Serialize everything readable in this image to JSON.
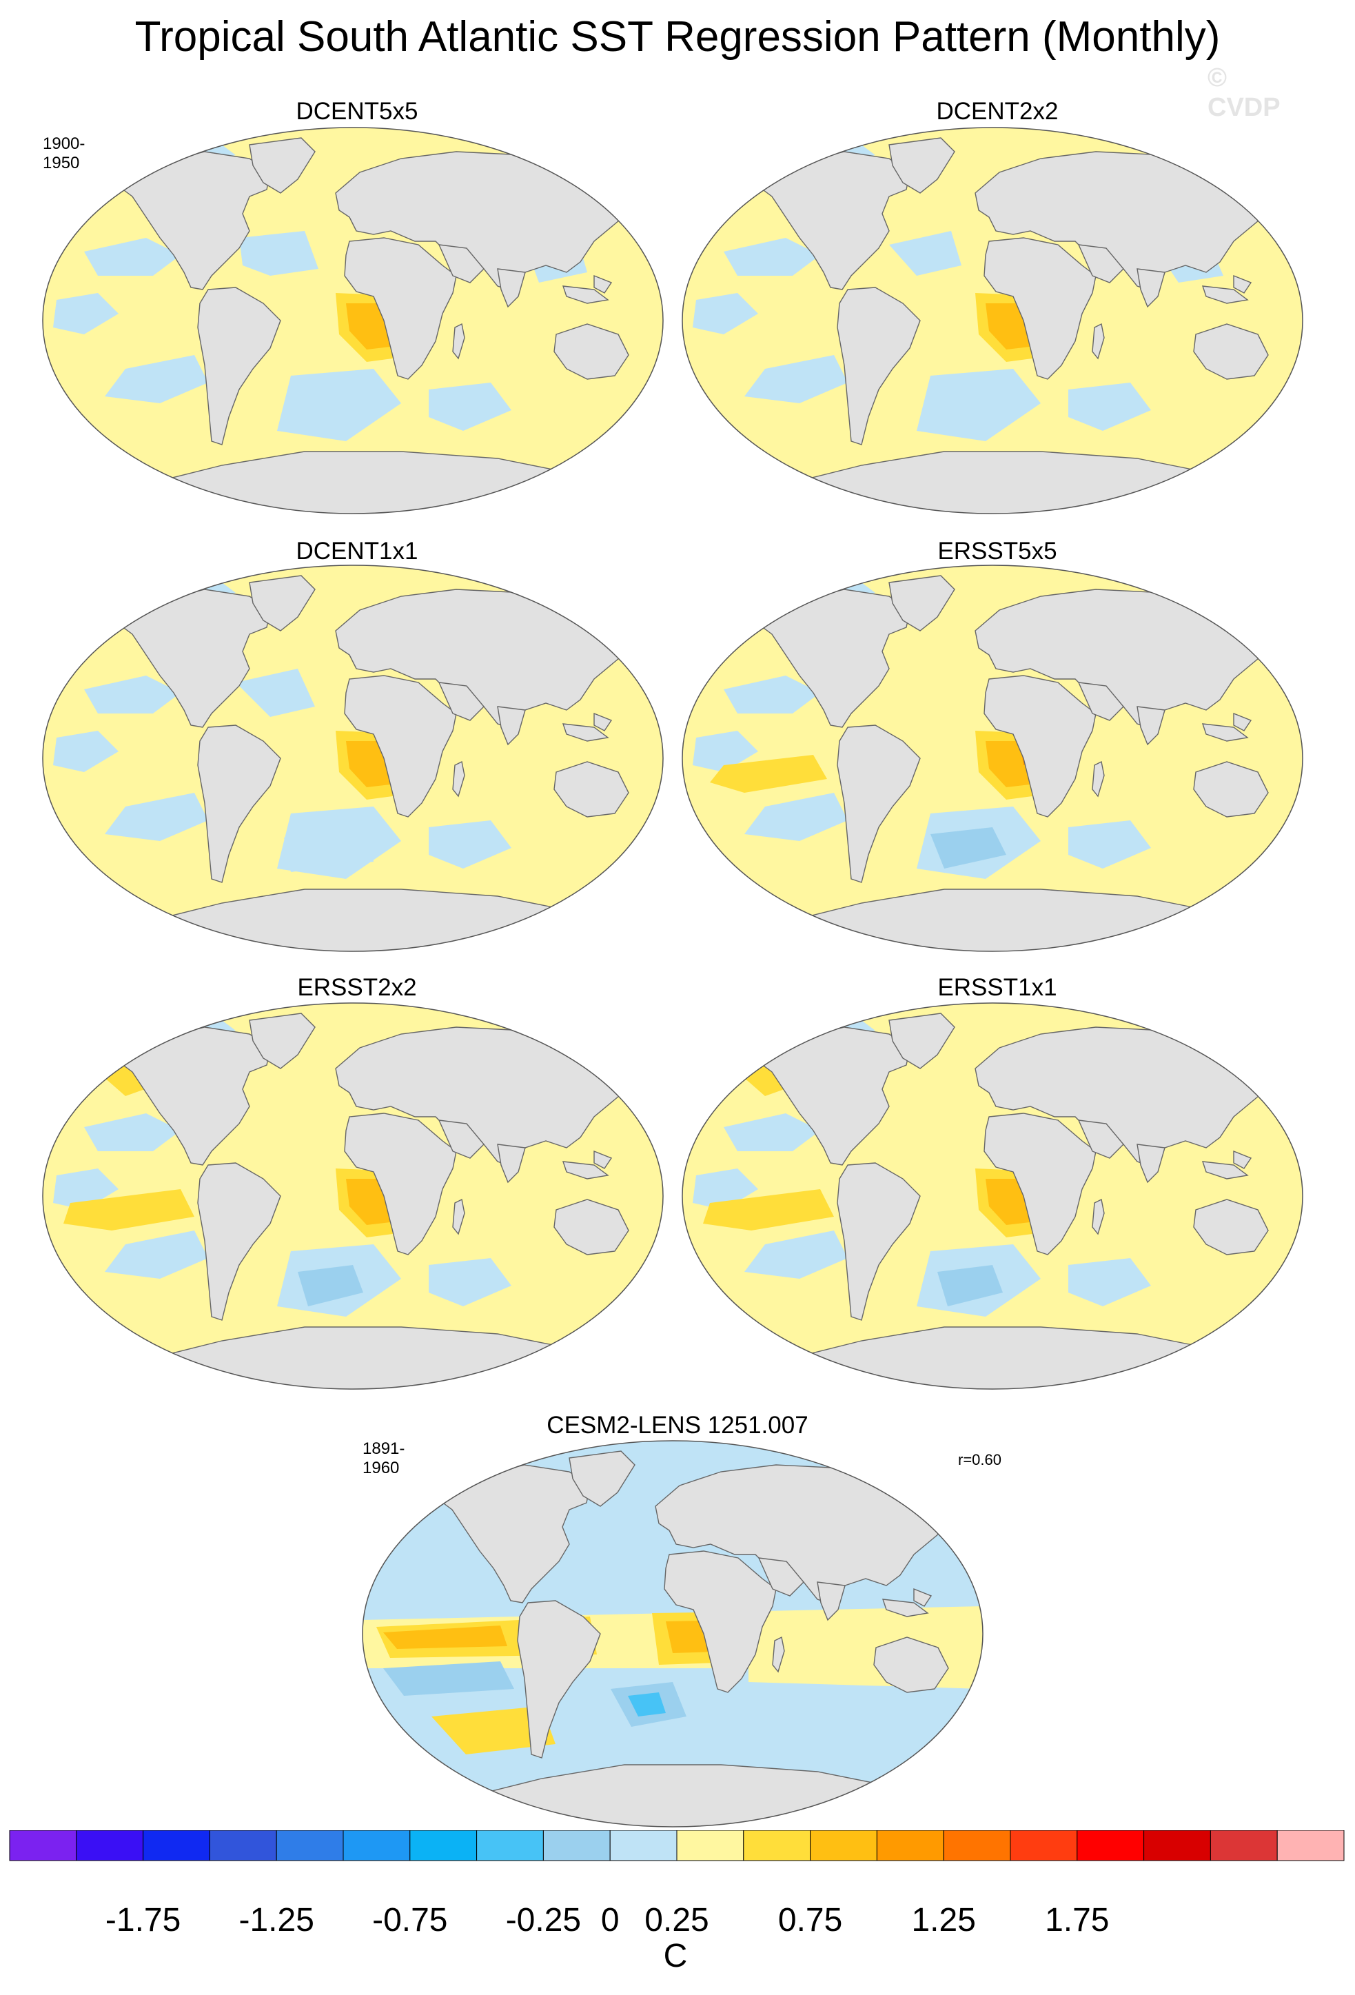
{
  "title": "Tropical South Atlantic SST Regression Pattern (Monthly)",
  "watermark": "© CVDP",
  "colors": {
    "land": "#e1e1e1",
    "coast": "#666666",
    "ocean_zero_pos": "#fff7a0",
    "ocean_zero_neg": "#bfe3f6",
    "background": "#ffffff"
  },
  "chart_data": [
    {
      "type": "heatmap",
      "projection": "robinson",
      "panel": "DCENT5x5",
      "title": "DCENT5x5",
      "period": "1900-1950",
      "units": "C"
    },
    {
      "type": "heatmap",
      "projection": "robinson",
      "panel": "DCENT2x2",
      "title": "DCENT2x2",
      "units": "C"
    },
    {
      "type": "heatmap",
      "projection": "robinson",
      "panel": "DCENT1x1",
      "title": "DCENT1x1",
      "units": "C"
    },
    {
      "type": "heatmap",
      "projection": "robinson",
      "panel": "ERSST5x5",
      "title": "ERSST5x5",
      "units": "C"
    },
    {
      "type": "heatmap",
      "projection": "robinson",
      "panel": "ERSST2x2",
      "title": "ERSST2x2",
      "units": "C"
    },
    {
      "type": "heatmap",
      "projection": "robinson",
      "panel": "ERSST1x1",
      "title": "ERSST1x1",
      "units": "C"
    },
    {
      "type": "heatmap",
      "projection": "robinson",
      "panel": "CESM2-LENS 1251.007",
      "title": "CESM2-LENS 1251.007",
      "period": "1891-1960",
      "pattern_correlation": "r=0.60",
      "units": "C"
    }
  ],
  "colorbar": {
    "unit": "C",
    "levels": [
      -2.0,
      -1.75,
      -1.5,
      -1.25,
      -1.0,
      -0.75,
      -0.5,
      -0.25,
      0,
      0.25,
      0.5,
      0.75,
      1.0,
      1.25,
      1.5,
      1.75,
      2.0
    ],
    "tick_labels": [
      "-1.75",
      "-1.25",
      "-0.75",
      "-0.25",
      "0",
      "0.25",
      "0.75",
      "1.25",
      "1.75"
    ],
    "colors": [
      "#7b22f0",
      "#3a0ff5",
      "#1029f2",
      "#3155db",
      "#2f7de8",
      "#1e98f4",
      "#0bb2f5",
      "#47c3f6",
      "#9bd0ee",
      "#bfe3f6",
      "#fff7a0",
      "#ffde3a",
      "#ffbf12",
      "#ff9a00",
      "#ff7400",
      "#ff3d10",
      "#ff0000",
      "#d80000",
      "#dc3636",
      "#ffb3b3"
    ]
  }
}
